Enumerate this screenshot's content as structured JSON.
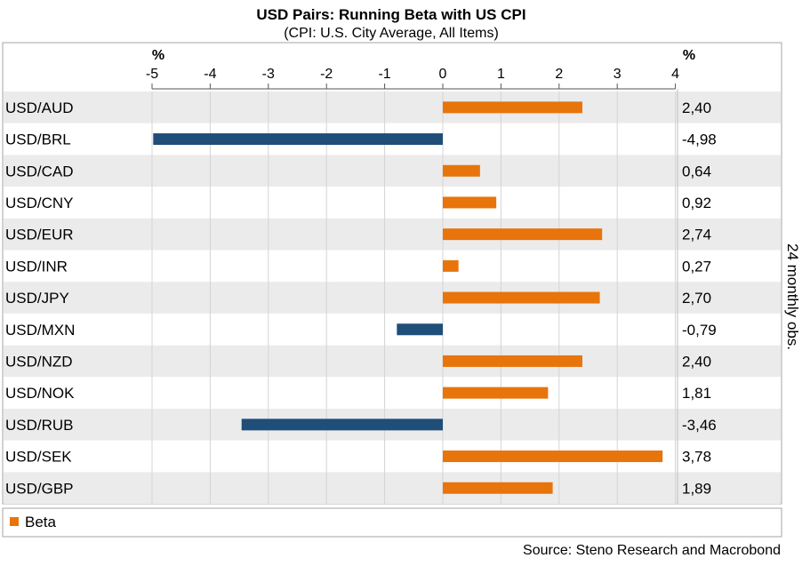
{
  "chart_data": {
    "type": "bar",
    "orientation": "horizontal",
    "title": "USD Pairs: Running Beta with US CPI",
    "subtitle": "(CPI: U.S. City Average, All Items)",
    "x_unit_left": "%",
    "x_unit_right": "%",
    "xlim": [
      -5,
      4
    ],
    "xticks": [
      "-5",
      "-4",
      "-3",
      "-2",
      "-1",
      "0",
      "1",
      "2",
      "3",
      "4"
    ],
    "categories": [
      "USD/AUD",
      "USD/BRL",
      "USD/CAD",
      "USD/CNY",
      "USD/EUR",
      "USD/INR",
      "USD/JPY",
      "USD/MXN",
      "USD/NZD",
      "USD/NOK",
      "USD/RUB",
      "USD/SEK",
      "USD/GBP"
    ],
    "series": [
      {
        "name": "Beta",
        "values": [
          2.4,
          -4.98,
          0.64,
          0.92,
          2.74,
          0.27,
          2.7,
          -0.79,
          2.4,
          1.81,
          -3.46,
          3.78,
          1.89
        ],
        "labels": [
          "2,40",
          "-4,98",
          "0,64",
          "0,92",
          "2,74",
          "0,27",
          "2,70",
          "-0,79",
          "2,40",
          "1,81",
          "-3,46",
          "3,78",
          "1,89"
        ]
      }
    ],
    "side_label": "24 monthly obs.",
    "legend_position": "bottom-left",
    "source": "Source: Steno Research and Macrobond",
    "colors": {
      "positive": "#E8740C",
      "negative": "#1F4E79",
      "row_alt": "#EBEBEB",
      "border": "#A6A6A6"
    }
  }
}
